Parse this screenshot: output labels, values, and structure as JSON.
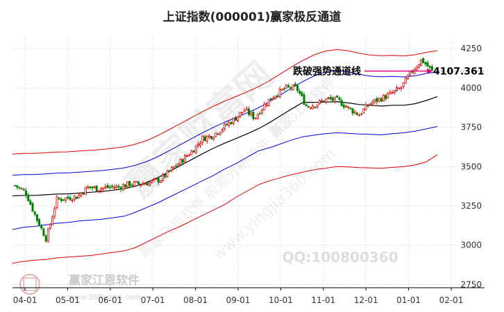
{
  "chart_data": {
    "type": "line",
    "title": "上证指数(000001)赢家极反通道",
    "x_ticks": [
      "04-01",
      "05-01",
      "06-01",
      "07-01",
      "08-01",
      "09-01",
      "10-01",
      "11-01",
      "12-01",
      "01-01",
      "02-01"
    ],
    "y_ticks": [
      2750,
      3000,
      3250,
      3500,
      3750,
      4000,
      4250
    ],
    "ylim": [
      2730,
      4330
    ],
    "grid": true,
    "annotation": {
      "label": "跌破强势通道线",
      "value": "4107.361"
    },
    "watermarks": [
      "赢家财富网",
      "赢家江恩软件",
      "赢家江恩软件 股票分析软件",
      "www.yingjia360.com",
      "QQ:100800360",
      "赢家江恩软件",
      "www.360gann.com"
    ],
    "colors": {
      "up": "#e00000",
      "down": "#008000",
      "ma": "#000000",
      "inner_band": "#0000dd",
      "outer_band": "#e00000",
      "annotation_line": "#e6007e"
    },
    "series": [
      {
        "role": "outer-upper",
        "color": "#e00000",
        "values": [
          3580,
          3584,
          3584,
          3588,
          3593,
          3594,
          3599,
          3604,
          3609,
          3617,
          3626,
          3643,
          3666,
          3697,
          3735,
          3773,
          3811,
          3849,
          3885,
          3917,
          3946,
          3976,
          4008,
          4047,
          4091,
          4135,
          4176,
          4211,
          4235,
          4244,
          4237,
          4221,
          4209,
          4205,
          4207,
          4204,
          4211,
          4226,
          4237
        ]
      },
      {
        "role": "inner-upper",
        "color": "#0000dd",
        "values": [
          3446,
          3450,
          3450,
          3454,
          3459,
          3460,
          3465,
          3470,
          3475,
          3483,
          3492,
          3509,
          3532,
          3563,
          3601,
          3639,
          3677,
          3715,
          3751,
          3783,
          3812,
          3842,
          3874,
          3913,
          3957,
          4001,
          4042,
          4077,
          4101,
          4110,
          4103,
          4087,
          4075,
          4071,
          4073,
          4070,
          4077,
          4092,
          4103
        ]
      },
      {
        "role": "middle-ma",
        "color": "#000000",
        "values": [
          3314,
          3317,
          3317,
          3321,
          3326,
          3327,
          3332,
          3337,
          3342,
          3350,
          3359,
          3376,
          3399,
          3430,
          3468,
          3506,
          3544,
          3582,
          3618,
          3650,
          3679,
          3709,
          3741,
          3780,
          3824,
          3868,
          3909,
          3908,
          3910,
          3913,
          3905,
          3895,
          3890,
          3885,
          3890,
          3890,
          3900,
          3920,
          3945
        ]
      },
      {
        "role": "inner-lower",
        "color": "#0000dd",
        "values": [
          3100,
          3115,
          3120,
          3130,
          3140,
          3145,
          3155,
          3160,
          3165,
          3175,
          3185,
          3210,
          3240,
          3270,
          3305,
          3340,
          3375,
          3410,
          3445,
          3485,
          3520,
          3560,
          3600,
          3620,
          3645,
          3670,
          3690,
          3700,
          3710,
          3715,
          3712,
          3707,
          3705,
          3702,
          3710,
          3715,
          3725,
          3740,
          3755
        ]
      },
      {
        "role": "outer-lower",
        "color": "#e00000",
        "values": [
          2885,
          2898,
          2905,
          2910,
          2920,
          2925,
          2930,
          2935,
          2945,
          2955,
          2965,
          2985,
          3020,
          3055,
          3090,
          3120,
          3155,
          3190,
          3225,
          3260,
          3305,
          3345,
          3385,
          3410,
          3430,
          3450,
          3465,
          3480,
          3490,
          3500,
          3498,
          3494,
          3492,
          3490,
          3495,
          3500,
          3510,
          3530,
          3575
        ]
      },
      {
        "role": "price",
        "color": "#444444",
        "values": [
          3380,
          3340,
          3180,
          3040,
          3290,
          3300,
          3310,
          3370,
          3360,
          3370,
          3370,
          3390,
          3390,
          3400,
          3420,
          3480,
          3540,
          3600,
          3680,
          3700,
          3750,
          3800,
          3860,
          3810,
          3900,
          3960,
          4000,
          4000,
          3880,
          3900,
          3930,
          3920,
          3870,
          3830,
          3900,
          3930,
          3960,
          4000,
          4100,
          4180,
          4107
        ]
      }
    ]
  }
}
